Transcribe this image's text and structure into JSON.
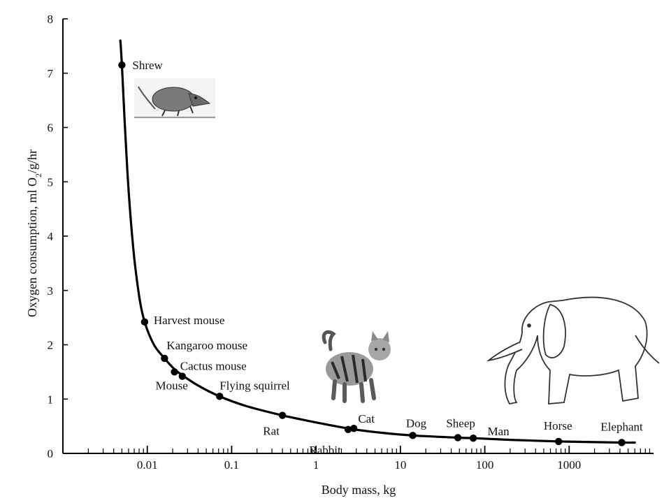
{
  "chart_data": {
    "type": "scatter",
    "x_scale": "log",
    "xlabel": "Body mass, kg",
    "ylabel": "Oxygen consumption, ml O",
    "ylabel_sub": "2",
    "ylabel_rest": "/g/hr",
    "xlim": [
      0.001,
      10000
    ],
    "ylim": [
      0,
      8
    ],
    "x_ticks": [
      0.01,
      0.1,
      1,
      10,
      100,
      1000
    ],
    "x_tick_labels": [
      "0.01",
      "0.1",
      "1",
      "10",
      "100",
      "1000"
    ],
    "y_ticks": [
      0,
      1,
      2,
      3,
      4,
      5,
      6,
      7,
      8
    ],
    "y_tick_labels": [
      "0",
      "1",
      "2",
      "3",
      "4",
      "5",
      "6",
      "7",
      "8"
    ],
    "grid": false,
    "points": [
      {
        "label": "Shrew",
        "x": 0.005,
        "y": 7.15
      },
      {
        "label": "Harvest mouse",
        "x": 0.0093,
        "y": 2.42
      },
      {
        "label": "Kangaroo mouse",
        "x": 0.016,
        "y": 1.75
      },
      {
        "label": "Mouse",
        "x": 0.021,
        "y": 1.5
      },
      {
        "label": "Cactus mouse",
        "x": 0.026,
        "y": 1.42
      },
      {
        "label": "Flying squirrel",
        "x": 0.072,
        "y": 1.05
      },
      {
        "label": "Rat",
        "x": 0.4,
        "y": 0.7
      },
      {
        "label": "Rabbit",
        "x": 2.4,
        "y": 0.44
      },
      {
        "label": "Cat",
        "x": 2.8,
        "y": 0.46
      },
      {
        "label": "Dog",
        "x": 14,
        "y": 0.33
      },
      {
        "label": "Sheep",
        "x": 48,
        "y": 0.29
      },
      {
        "label": "Man",
        "x": 73,
        "y": 0.28
      },
      {
        "label": "Horse",
        "x": 750,
        "y": 0.22
      },
      {
        "label": "Elephant",
        "x": 4200,
        "y": 0.2
      }
    ],
    "curve": [
      {
        "x": 0.0048,
        "y": 7.6
      },
      {
        "x": 0.005,
        "y": 7.15
      },
      {
        "x": 0.0058,
        "y": 5.2
      },
      {
        "x": 0.0068,
        "y": 3.8
      },
      {
        "x": 0.008,
        "y": 2.9
      },
      {
        "x": 0.0093,
        "y": 2.42
      },
      {
        "x": 0.012,
        "y": 2.0
      },
      {
        "x": 0.016,
        "y": 1.75
      },
      {
        "x": 0.021,
        "y": 1.55
      },
      {
        "x": 0.026,
        "y": 1.44
      },
      {
        "x": 0.04,
        "y": 1.25
      },
      {
        "x": 0.072,
        "y": 1.05
      },
      {
        "x": 0.15,
        "y": 0.87
      },
      {
        "x": 0.4,
        "y": 0.7
      },
      {
        "x": 1.0,
        "y": 0.57
      },
      {
        "x": 2.6,
        "y": 0.45
      },
      {
        "x": 6,
        "y": 0.38
      },
      {
        "x": 14,
        "y": 0.33
      },
      {
        "x": 48,
        "y": 0.29
      },
      {
        "x": 73,
        "y": 0.28
      },
      {
        "x": 200,
        "y": 0.25
      },
      {
        "x": 750,
        "y": 0.22
      },
      {
        "x": 4200,
        "y": 0.2
      },
      {
        "x": 6000,
        "y": 0.2
      }
    ],
    "illustrations": [
      "shrew-illustration",
      "cat-photo",
      "elephant-illustration"
    ]
  }
}
